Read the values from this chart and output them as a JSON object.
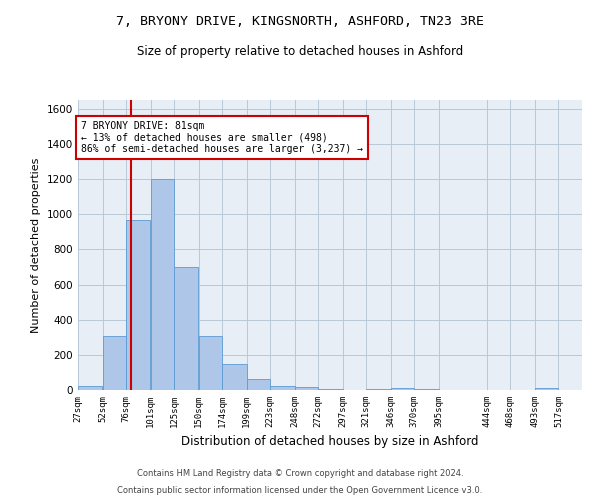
{
  "title1": "7, BRYONY DRIVE, KINGSNORTH, ASHFORD, TN23 3RE",
  "title2": "Size of property relative to detached houses in Ashford",
  "xlabel": "Distribution of detached houses by size in Ashford",
  "ylabel": "Number of detached properties",
  "footnote1": "Contains HM Land Registry data © Crown copyright and database right 2024.",
  "footnote2": "Contains public sector information licensed under the Open Government Licence v3.0.",
  "annotation_line1": "7 BRYONY DRIVE: 81sqm",
  "annotation_line2": "← 13% of detached houses are smaller (498)",
  "annotation_line3": "86% of semi-detached houses are larger (3,237) →",
  "property_size": 81,
  "bar_left_edges": [
    27,
    52,
    76,
    101,
    125,
    150,
    174,
    199,
    223,
    248,
    272,
    297,
    321,
    346,
    370,
    395,
    419,
    444,
    468,
    493
  ],
  "bar_widths": [
    25,
    24,
    25,
    24,
    25,
    24,
    25,
    24,
    25,
    24,
    25,
    24,
    25,
    24,
    25,
    24,
    25,
    24,
    25,
    24
  ],
  "bar_heights": [
    20,
    310,
    970,
    1200,
    700,
    310,
    150,
    65,
    25,
    15,
    5,
    0,
    5,
    10,
    3,
    2,
    0,
    0,
    0,
    10
  ],
  "tick_labels": [
    "27sqm",
    "52sqm",
    "76sqm",
    "101sqm",
    "125sqm",
    "150sqm",
    "174sqm",
    "199sqm",
    "223sqm",
    "248sqm",
    "272sqm",
    "297sqm",
    "321sqm",
    "346sqm",
    "370sqm",
    "395sqm",
    "444sqm",
    "468sqm",
    "493sqm",
    "517sqm"
  ],
  "tick_positions": [
    27,
    52,
    76,
    101,
    125,
    150,
    174,
    199,
    223,
    248,
    272,
    297,
    321,
    346,
    370,
    395,
    444,
    468,
    493,
    517
  ],
  "bar_color": "#aec6e8",
  "bar_edge_color": "#5b9bd5",
  "red_line_color": "#cc0000",
  "annotation_box_color": "#cc0000",
  "background_color": "#ffffff",
  "plot_bg_color": "#e8eef5",
  "grid_color": "#b8c8d8",
  "ylim": [
    0,
    1650
  ],
  "xlim": [
    27,
    541
  ]
}
